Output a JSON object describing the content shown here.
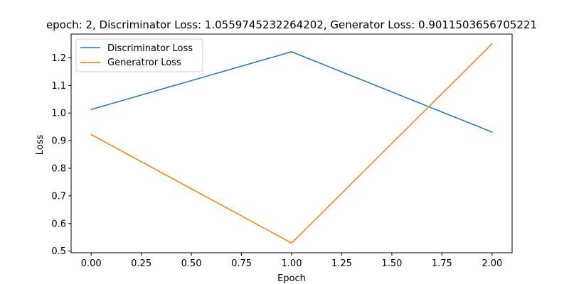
{
  "chart_data": {
    "type": "line",
    "title": "epoch: 2, Discriminator Loss: 1.0559745232264202, Generator Loss: 0.9011503656705221",
    "xlabel": "Epoch",
    "ylabel": "Loss",
    "x": [
      0,
      1,
      2
    ],
    "series": [
      {
        "name": "Discriminator Loss",
        "color": "#1f77b4",
        "values": [
          1.013,
          1.222,
          0.931
        ]
      },
      {
        "name": "Generatror Loss",
        "color": "#ff7f0e",
        "values": [
          0.922,
          0.529,
          1.251
        ]
      }
    ],
    "xlim": [
      -0.1,
      2.1
    ],
    "ylim": [
      0.494,
      1.286
    ],
    "xticks": [
      0.0,
      0.25,
      0.5,
      0.75,
      1.0,
      1.25,
      1.5,
      1.75,
      2.0
    ],
    "xtick_labels": [
      "0.00",
      "0.25",
      "0.50",
      "0.75",
      "1.00",
      "1.25",
      "1.50",
      "1.75",
      "2.00"
    ],
    "yticks": [
      0.5,
      0.6,
      0.7,
      0.8,
      0.9,
      1.0,
      1.1,
      1.2
    ],
    "ytick_labels": [
      "0.5",
      "0.6",
      "0.7",
      "0.8",
      "0.9",
      "1.0",
      "1.1",
      "1.2"
    ],
    "grid": false,
    "legend": "upper left"
  }
}
